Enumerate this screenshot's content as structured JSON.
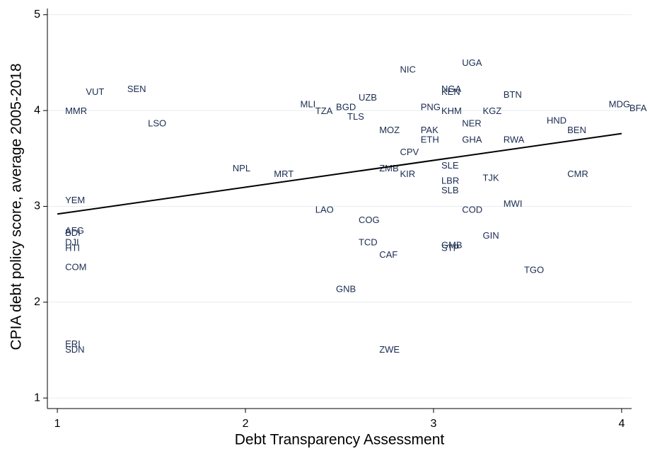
{
  "chart_data": {
    "type": "scatter",
    "xlabel": "Debt Transparency Assessment",
    "ylabel": "CPIA debt policy score, average 2005-2018",
    "labels": [
      "UGA",
      "NIC",
      "VUT",
      "SEN",
      "NGA",
      "KEN",
      "BTN",
      "UZB",
      "MLI",
      "BGD",
      "TZA",
      "MMR",
      "PNG",
      "KHM",
      "KGZ",
      "MDG",
      "BFA",
      "TLS",
      "NER",
      "LSO",
      "HND",
      "MOZ",
      "PAK",
      "BEN",
      "ETH",
      "GHA",
      "RWA",
      "CPV",
      "SLE",
      "ZMB",
      "NPL",
      "KIR",
      "MRT",
      "CMR",
      "TJK",
      "LBR",
      "SLB",
      "YEM",
      "MWI",
      "LAO",
      "COD",
      "COG",
      "AFG",
      "BDI",
      "GIN",
      "DJI",
      "TCD",
      "GMB",
      "STP",
      "HTI",
      "CAF",
      "COM",
      "TGO",
      "GNB",
      "ERI",
      "SDN",
      "ZWE"
    ],
    "x": [
      3.11,
      2.78,
      1.11,
      1.33,
      3.0,
      3.0,
      3.33,
      2.56,
      2.25,
      2.44,
      2.33,
      1.0,
      2.89,
      3.0,
      3.22,
      3.89,
      4.0,
      2.5,
      3.11,
      1.44,
      3.56,
      2.67,
      2.89,
      3.67,
      2.89,
      3.11,
      3.33,
      2.78,
      3.0,
      2.67,
      1.89,
      2.78,
      2.11,
      3.67,
      3.22,
      3.0,
      3.0,
      1.0,
      3.33,
      2.33,
      3.11,
      2.56,
      1.0,
      1.0,
      3.22,
      1.0,
      2.56,
      3.0,
      3.0,
      1.0,
      2.67,
      1.0,
      3.44,
      2.44,
      1.0,
      1.0,
      2.67
    ],
    "values": [
      4.49,
      4.42,
      4.19,
      4.22,
      4.22,
      4.19,
      4.16,
      4.13,
      4.06,
      4.03,
      3.99,
      3.99,
      4.03,
      3.99,
      3.99,
      4.06,
      4.02,
      3.93,
      3.86,
      3.86,
      3.89,
      3.79,
      3.79,
      3.79,
      3.69,
      3.69,
      3.69,
      3.56,
      3.42,
      3.39,
      3.39,
      3.33,
      3.33,
      3.33,
      3.29,
      3.26,
      3.16,
      3.06,
      3.02,
      2.96,
      2.96,
      2.85,
      2.74,
      2.72,
      2.69,
      2.62,
      2.62,
      2.59,
      2.56,
      2.56,
      2.49,
      2.36,
      2.33,
      2.13,
      1.56,
      1.5,
      1.5
    ],
    "color": "#1a2b50",
    "fit_line": {
      "x": [
        1,
        4
      ],
      "values": [
        2.92,
        3.76
      ],
      "color": "#000000"
    },
    "xlim": [
      0.947,
      4.053
    ],
    "ylim": [
      0.89,
      5.05
    ],
    "xticks": [
      1,
      2,
      3,
      4
    ],
    "yticks": [
      1,
      2,
      3,
      4,
      5
    ],
    "grid": true
  }
}
